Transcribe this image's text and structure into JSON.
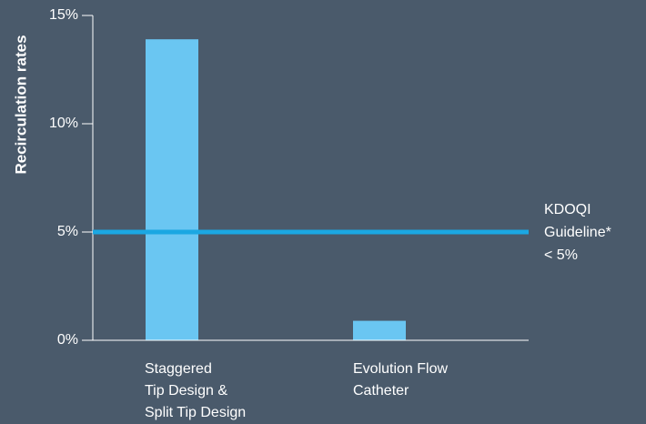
{
  "chart_data": {
    "type": "bar",
    "ylabel": "Recirculation rates",
    "ylim": [
      0,
      15
    ],
    "yticks": [
      0,
      5,
      10,
      15
    ],
    "ytick_labels": [
      "0%",
      "5%",
      "10%",
      "15%"
    ],
    "categories": [
      [
        "Staggered",
        "Tip Design &",
        "Split Tip Design"
      ],
      [
        "Evolution Flow",
        "Catheter"
      ]
    ],
    "values": [
      13.9,
      0.9
    ],
    "reference_line": {
      "value": 5,
      "label_lines": [
        "KDOQI",
        "Guideline*",
        "< 5%"
      ]
    },
    "colors": {
      "bar": "#6ac6f2",
      "reference": "#1ba7e2",
      "axis": "#ffffff"
    }
  }
}
